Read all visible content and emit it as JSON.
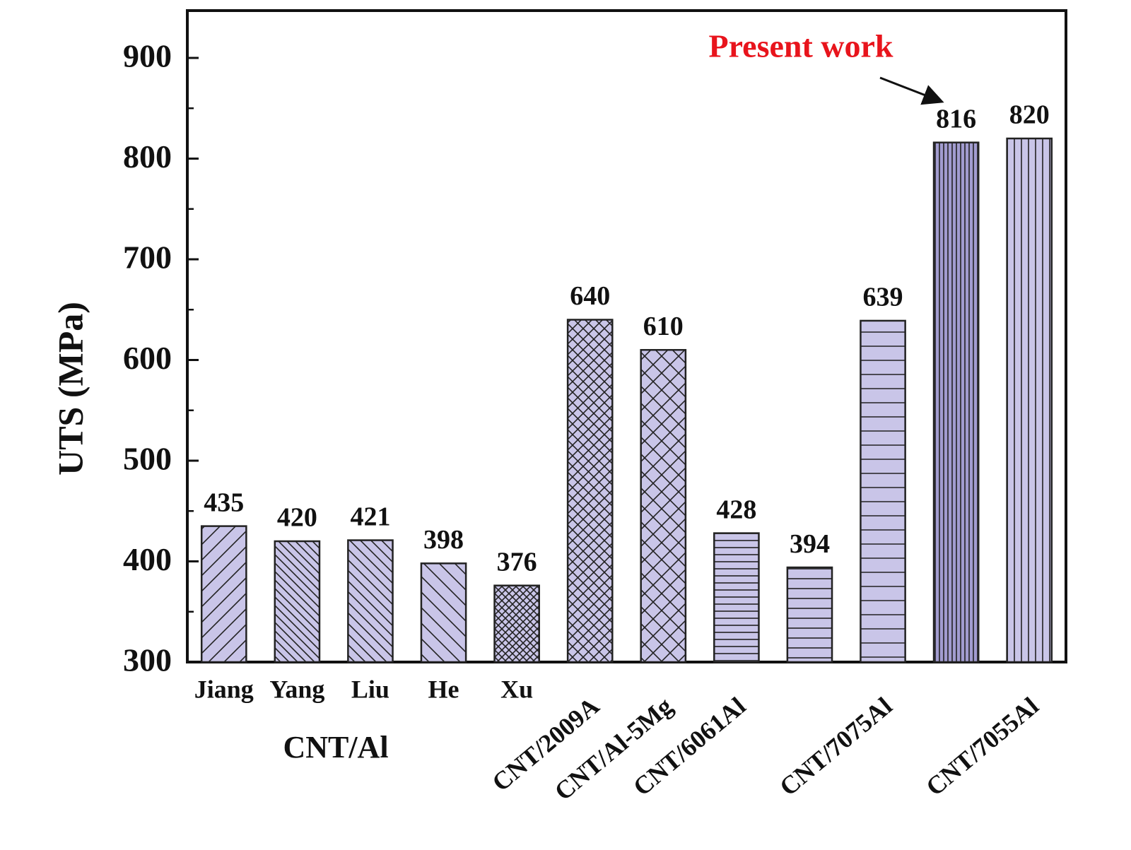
{
  "chart_data": {
    "type": "bar",
    "ylabel": "UTS (MPa)",
    "categories": [
      "Jiang",
      "Yang",
      "Liu",
      "He",
      "Xu",
      "CNT/2009A",
      "CNT/Al-5Mg",
      "CNT/6061Al",
      null,
      "CNT/7075Al",
      null,
      "CNT/7055Al"
    ],
    "values": [
      435,
      420,
      421,
      398,
      376,
      640,
      610,
      428,
      394,
      639,
      816,
      820
    ],
    "group_label": "CNT/Al",
    "annotation": "Present work",
    "color": "#c9c5e8",
    "ylim": [
      300,
      947
    ],
    "yticks": [
      300,
      400,
      500,
      600,
      700,
      800,
      900
    ],
    "grid": false
  }
}
